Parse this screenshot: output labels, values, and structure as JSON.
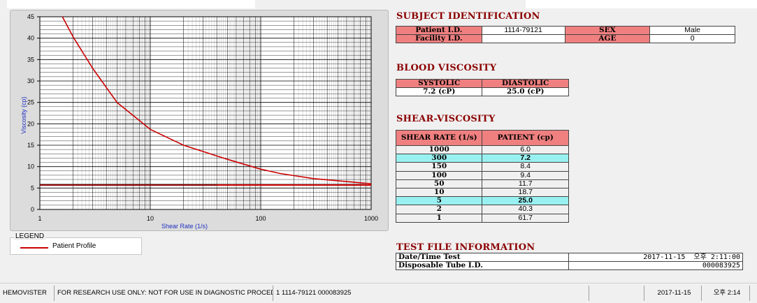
{
  "chart": {
    "ylabel": "Viscosity (cp)",
    "xlabel": "Shear Rate (1/s)",
    "y_ticks": [
      "0",
      "5",
      "10",
      "15",
      "20",
      "25",
      "30",
      "35",
      "40",
      "45"
    ],
    "x_ticks": [
      "1",
      "10",
      "100",
      "1000"
    ],
    "legend_title": "LEGEND",
    "legend_label": "Patient Profile",
    "line_color": "#cc0000"
  },
  "chart_data": {
    "type": "line",
    "xscale": "log",
    "xlim": [
      1,
      1000
    ],
    "ylim": [
      0,
      45
    ],
    "grid": true,
    "xlabel": "Shear Rate (1/s)",
    "ylabel": "Viscosity (cp)",
    "legend_position": "bottom-left",
    "series": [
      {
        "name": "Patient Profile",
        "x": [
          1.6,
          2,
          3,
          5,
          10,
          20,
          50,
          100,
          150,
          300,
          1000
        ],
        "y": [
          45,
          40.3,
          33,
          25.0,
          18.7,
          15,
          11.7,
          9.4,
          8.4,
          7.2,
          6.0
        ]
      }
    ],
    "reference_lines": [
      {
        "y": 5.7,
        "color": "#8b0000",
        "x_range": [
          1,
          40
        ]
      },
      {
        "y": 5.7,
        "color": "#cc0000",
        "x_range": [
          40,
          1000
        ]
      }
    ]
  },
  "subject": {
    "title": "SUBJECT IDENTIFICATION",
    "patient_id_label": "Patient I.D.",
    "patient_id": "1114-79121",
    "sex_label": "SEX",
    "sex": "Male",
    "facility_label": "Facility I.D.",
    "facility": "",
    "age_label": "AGE",
    "age": "0"
  },
  "blood": {
    "title": "BLOOD VISCOSITY",
    "systolic_label": "SYSTOLIC",
    "diastolic_label": "DIASTOLIC",
    "systolic": "7.2 (cP)",
    "diastolic": "25.0 (cP)"
  },
  "shear": {
    "title": "SHEAR-VISCOSITY",
    "col1": "SHEAR RATE (1/s)",
    "col2": "PATIENT (cp)",
    "rows": [
      {
        "rate": "1000",
        "val": "6.0"
      },
      {
        "rate": "300",
        "val": "7.2"
      },
      {
        "rate": "150",
        "val": "8.4"
      },
      {
        "rate": "100",
        "val": "9.4"
      },
      {
        "rate": "50",
        "val": "11.7"
      },
      {
        "rate": "10",
        "val": "18.7"
      },
      {
        "rate": "5",
        "val": "25.0"
      },
      {
        "rate": "2",
        "val": "40.3"
      },
      {
        "rate": "1",
        "val": "61.7"
      }
    ]
  },
  "testfile": {
    "title": "TEST FILE INFORMATION",
    "datetime_label": "Date/Time Test",
    "datetime": "2017-11-15  오후 2:11:00",
    "tube_label": "Disposable Tube I.D.",
    "tube": "000083925"
  },
  "status": {
    "app": "HEMOVISTER",
    "notice": "FOR RESEARCH USE ONLY: NOT FOR USE IN DIAGNOSTIC PROCEDURES",
    "info": "1  1114-79121  000083925",
    "empty": "",
    "date": "2017-11-15",
    "time": "오후 2:14"
  }
}
